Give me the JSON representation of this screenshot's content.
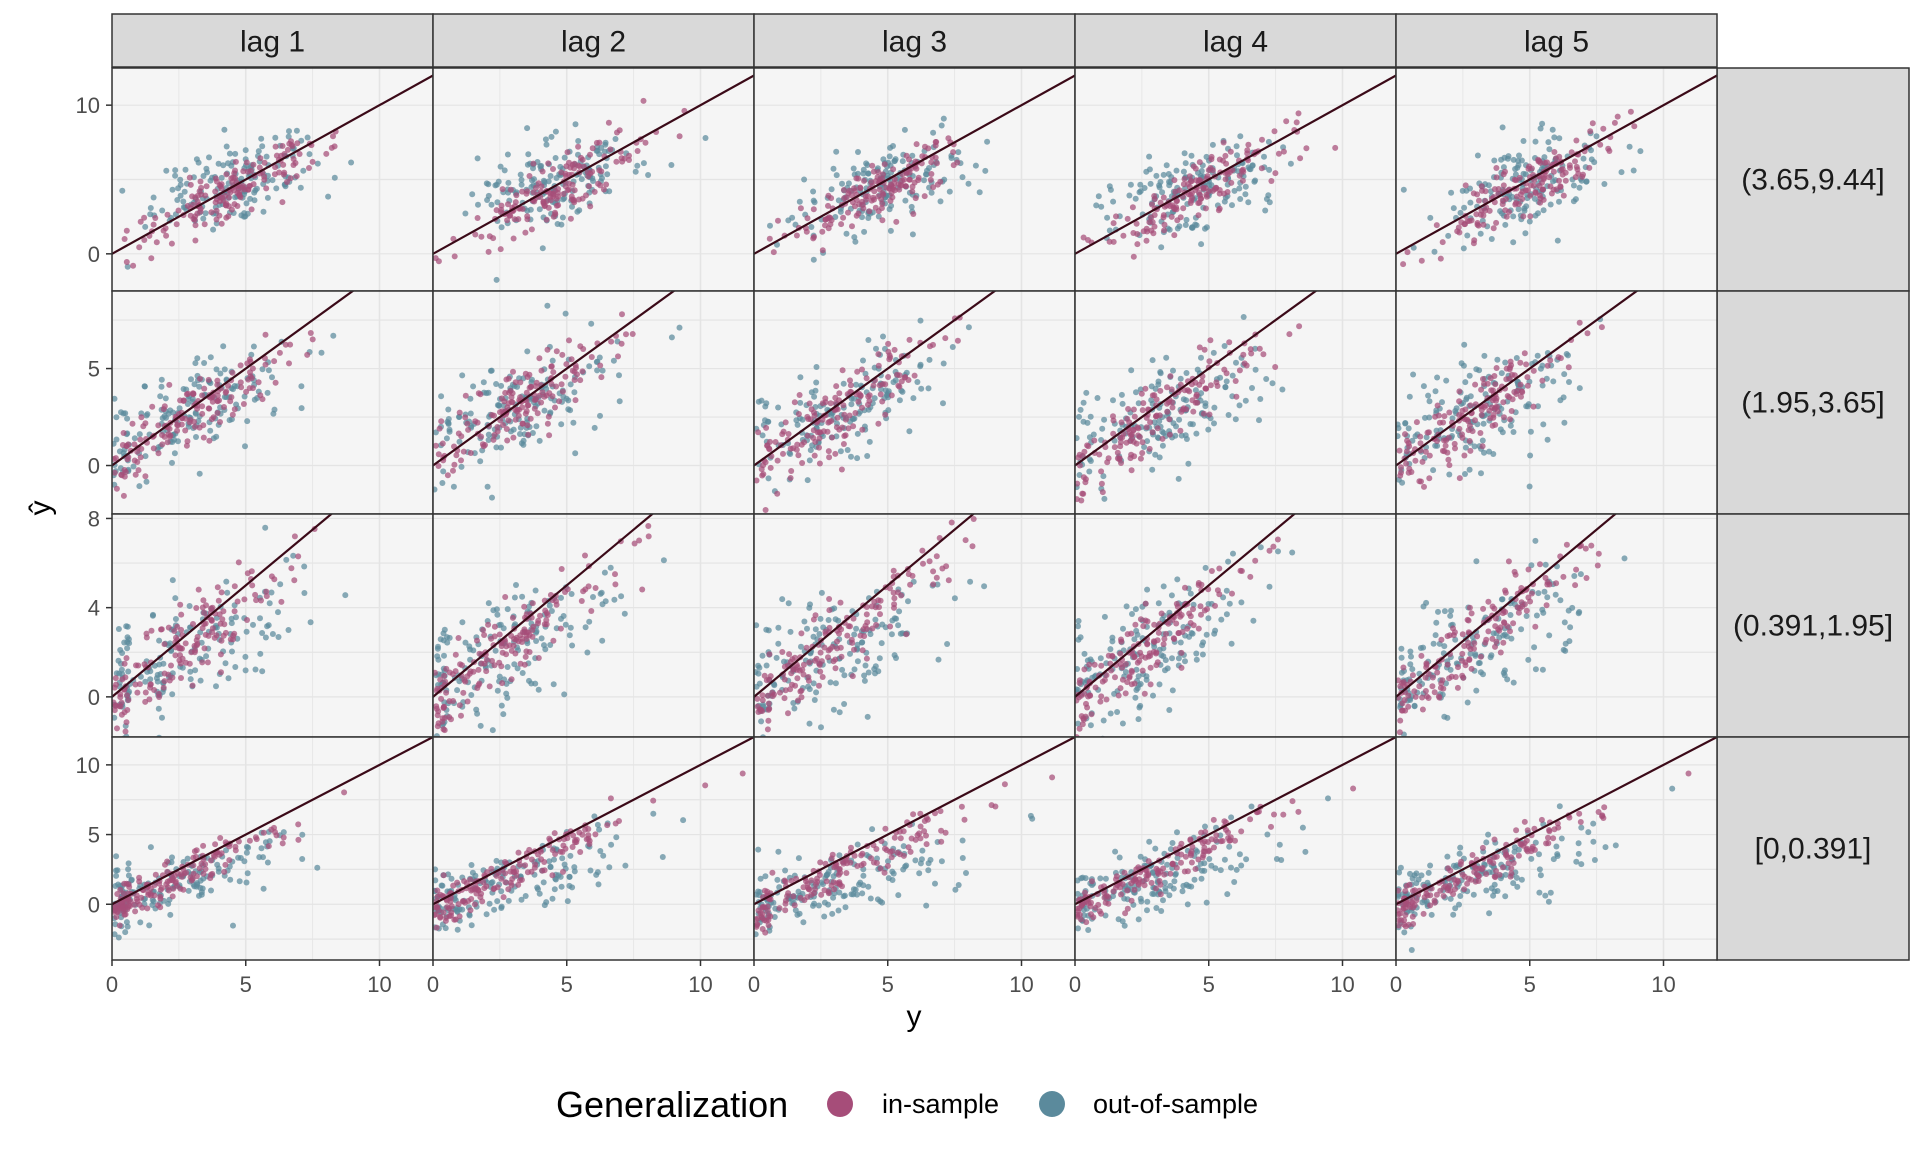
{
  "chart_data": {
    "type": "scatter",
    "facet_columns": [
      "lag 1",
      "lag 2",
      "lag 3",
      "lag 4",
      "lag 5"
    ],
    "facet_rows": [
      "(3.65,9.44]",
      "(1.95,3.65]",
      "(0.391,1.95]",
      "[0,0.391]"
    ],
    "xlabel": "y",
    "ylabel": "ŷ",
    "xlim": [
      0,
      12
    ],
    "x_ticks": [
      0,
      5,
      10
    ],
    "row_ylims": [
      [
        -2.5,
        12.5
      ],
      [
        -2.5,
        9.0
      ],
      [
        -1.8,
        8.2
      ],
      [
        -4.0,
        12.0
      ]
    ],
    "row_y_ticks": [
      [
        0,
        10
      ],
      [
        0,
        5
      ],
      [
        0,
        4,
        8
      ],
      [
        0,
        5,
        10
      ]
    ],
    "reference_line": {
      "slope": 1,
      "intercept": 0,
      "color": "#3b0a18"
    },
    "legend": {
      "title": "Generalization",
      "position": "bottom",
      "entries": [
        {
          "name": "in-sample",
          "color": "#a64d79"
        },
        {
          "name": "out-of-sample",
          "color": "#5b8a9c"
        }
      ]
    },
    "series_summary": {
      "in-sample": "points cluster tightly around the y = ŷ line in every panel",
      "out-of-sample": "points scatter more widely and fall mostly below the y = ŷ line at high y"
    },
    "panel_point_count_per_series": 160,
    "panel_centers": [
      [
        [
          4.5,
          4.8
        ],
        [
          4.6,
          4.9
        ],
        [
          4.8,
          4.5
        ],
        [
          4.6,
          4.6
        ],
        [
          4.9,
          4.7
        ]
      ],
      [
        [
          3.0,
          2.7
        ],
        [
          3.2,
          3.1
        ],
        [
          3.3,
          2.8
        ],
        [
          3.2,
          2.6
        ],
        [
          3.1,
          2.8
        ]
      ],
      [
        [
          2.6,
          1.9
        ],
        [
          2.8,
          2.2
        ],
        [
          2.9,
          2.0
        ],
        [
          2.7,
          2.2
        ],
        [
          2.6,
          2.0
        ]
      ],
      [
        [
          2.2,
          1.3
        ],
        [
          2.7,
          1.6
        ],
        [
          2.9,
          1.4
        ],
        [
          2.8,
          1.6
        ],
        [
          2.9,
          1.9
        ]
      ]
    ]
  }
}
